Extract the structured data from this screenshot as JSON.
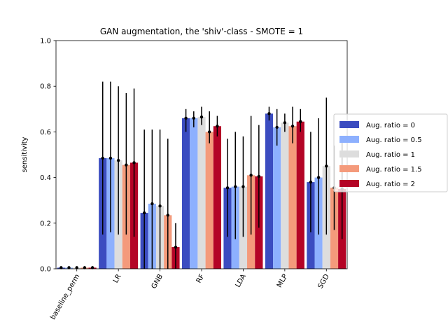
{
  "chart_data": {
    "type": "bar",
    "title": "GAN augmentation, the 'shiv'-class - SMOTE = 1",
    "xlabel": "",
    "ylabel": "sensitivity",
    "ylim": [
      0,
      1.0
    ],
    "yticks": [
      "0.0",
      "0.2",
      "0.4",
      "0.6",
      "0.8",
      "1.0"
    ],
    "categories": [
      "baseline_perm",
      "LR",
      "GNB",
      "RF",
      "LDA",
      "MLP",
      "SGD"
    ],
    "legend_position": "right outside",
    "series": [
      {
        "name": "Aug. ratio = 0",
        "color": "#3b4cc0",
        "values": [
          0.005,
          0.485,
          0.245,
          0.66,
          0.355,
          0.68,
          0.38
        ],
        "err_low": [
          0.0,
          0.15,
          0.0,
          0.6,
          0.14,
          0.65,
          0.16
        ],
        "err_high": [
          0.01,
          0.82,
          0.61,
          0.7,
          0.57,
          0.71,
          0.6
        ]
      },
      {
        "name": "Aug. ratio = 0.5",
        "color": "#8db0fe",
        "values": [
          0.005,
          0.485,
          0.285,
          0.66,
          0.36,
          0.62,
          0.4
        ],
        "err_low": [
          0.0,
          0.16,
          0.0,
          0.62,
          0.13,
          0.54,
          0.15
        ],
        "err_high": [
          0.01,
          0.82,
          0.61,
          0.69,
          0.6,
          0.7,
          0.66
        ]
      },
      {
        "name": "Aug. ratio = 1",
        "color": "#dddddd",
        "values": [
          0.005,
          0.475,
          0.275,
          0.665,
          0.36,
          0.64,
          0.45
        ],
        "err_low": [
          0.0,
          0.15,
          0.0,
          0.63,
          0.14,
          0.6,
          0.15
        ],
        "err_high": [
          0.01,
          0.8,
          0.61,
          0.71,
          0.58,
          0.68,
          0.75
        ]
      },
      {
        "name": "Aug. ratio = 1.5",
        "color": "#f49a7b",
        "values": [
          0.005,
          0.455,
          0.235,
          0.6,
          0.41,
          0.625,
          0.355
        ],
        "err_low": [
          0.0,
          0.15,
          0.0,
          0.55,
          0.15,
          0.55,
          0.17
        ],
        "err_high": [
          0.01,
          0.77,
          0.57,
          0.69,
          0.67,
          0.71,
          0.54
        ]
      },
      {
        "name": "Aug. ratio = 2",
        "color": "#b40426",
        "values": [
          0.005,
          0.465,
          0.095,
          0.625,
          0.405,
          0.645,
          0.35
        ],
        "err_low": [
          0.0,
          0.14,
          0.0,
          0.58,
          0.18,
          0.6,
          0.13
        ],
        "err_high": [
          0.01,
          0.79,
          0.2,
          0.67,
          0.63,
          0.7,
          0.57
        ]
      }
    ]
  }
}
